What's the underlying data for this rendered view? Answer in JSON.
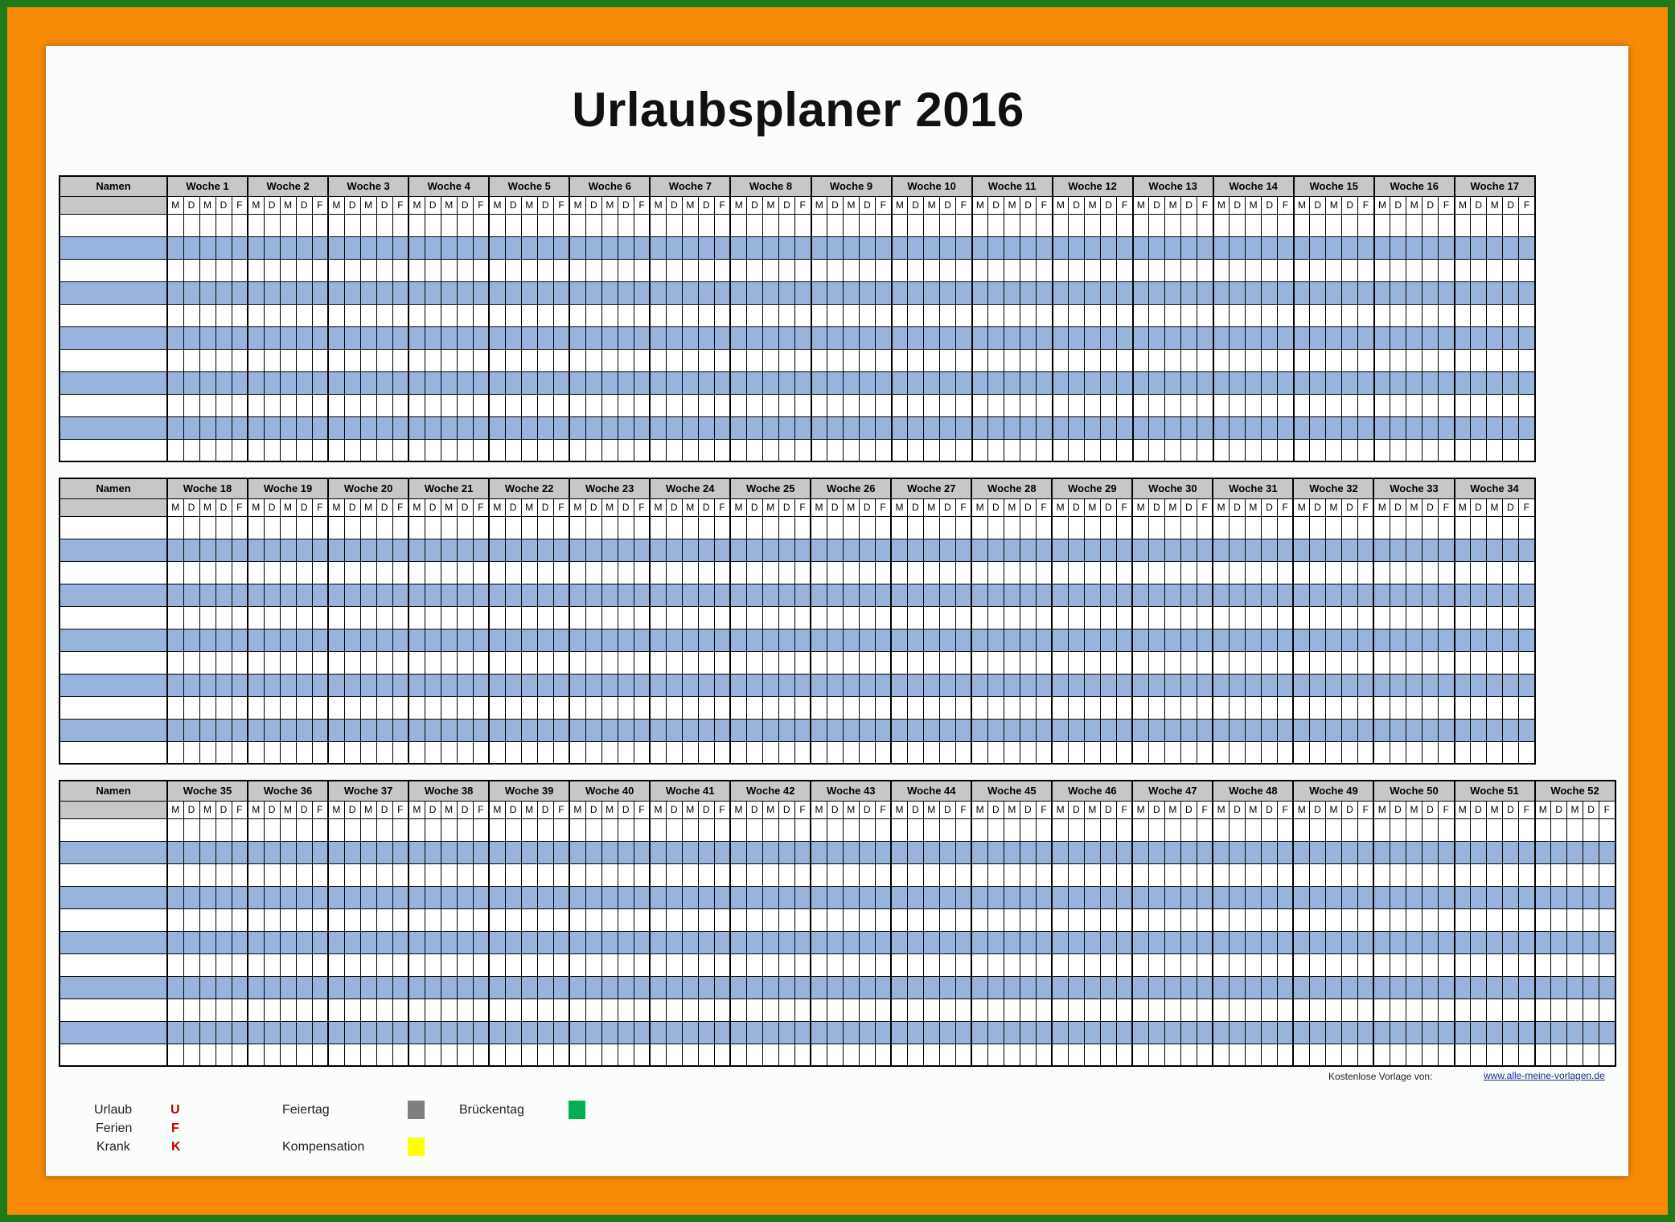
{
  "title": "Urlaubsplaner 2016",
  "name_header": "Namen",
  "week_prefix": "Woche",
  "day_letters": [
    "M",
    "D",
    "M",
    "D",
    "F"
  ],
  "blocks": [
    {
      "start_week": 1,
      "end_week": 17
    },
    {
      "start_week": 18,
      "end_week": 34
    },
    {
      "start_week": 35,
      "end_week": 52
    }
  ],
  "name_rows": 11,
  "footer": {
    "note": "Kostenlose Vorlage von:",
    "link": "www.alle-meine-vorlagen.de"
  },
  "legend": {
    "urlaub": {
      "label": "Urlaub",
      "code": "U"
    },
    "ferien": {
      "label": "Ferien",
      "code": "F"
    },
    "krank": {
      "label": "Krank",
      "code": "K"
    },
    "feiertag": {
      "label": "Feiertag",
      "color": "#7f7f7f"
    },
    "kompensation": {
      "label": "Kompensation",
      "color": "#ffff00"
    },
    "brueckentag": {
      "label": "Brückentag",
      "color": "#00b050"
    }
  },
  "colors": {
    "alt_row": "#98b4dc",
    "header_gray": "#c6c8c7",
    "frame_green": "#1f7a1a",
    "frame_orange": "#f88a06"
  }
}
